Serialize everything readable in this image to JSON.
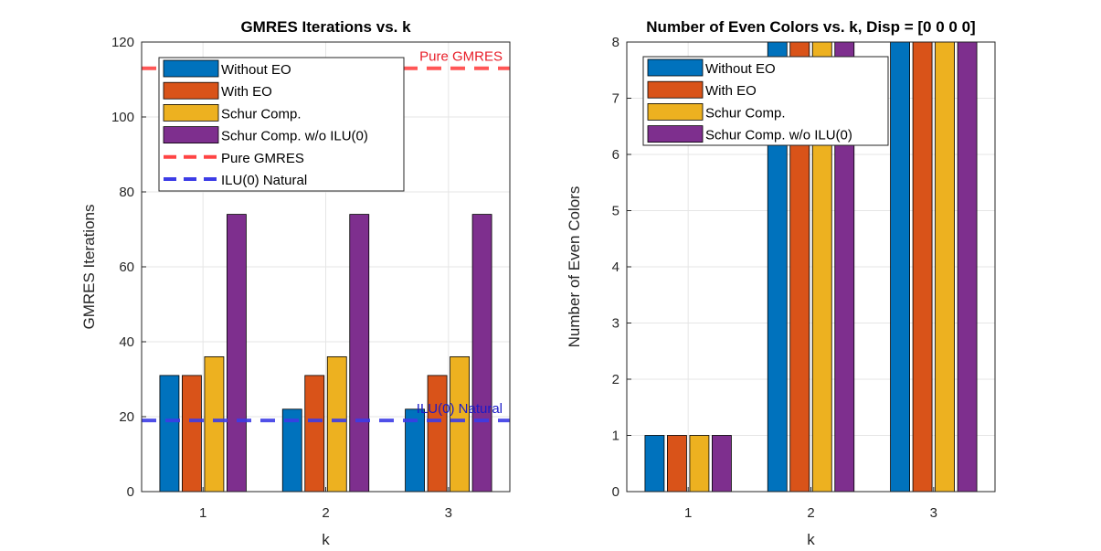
{
  "chart_data": [
    {
      "type": "bar",
      "title": "GMRES Iterations vs. k",
      "xlabel": "k",
      "ylabel": "GMRES Iterations",
      "categories": [
        "1",
        "2",
        "3"
      ],
      "ylim": [
        0,
        120
      ],
      "yticks": [
        0,
        20,
        40,
        60,
        80,
        100,
        120
      ],
      "grid": true,
      "legend_position": "top-left",
      "series": [
        {
          "name": "Without EO",
          "color": "#0072BD",
          "values": [
            31,
            22,
            22
          ]
        },
        {
          "name": "With EO",
          "color": "#D95319",
          "values": [
            31,
            31,
            31
          ]
        },
        {
          "name": "Schur Comp.",
          "color": "#EDB120",
          "values": [
            36,
            36,
            36
          ]
        },
        {
          "name": "Schur Comp. w/o ILU(0)",
          "color": "#7E2F8E",
          "values": [
            74,
            74,
            74
          ]
        }
      ],
      "reference_lines": [
        {
          "name": "Pure GMRES",
          "value": 113,
          "color": "#FF4444",
          "label_color": "#E8202A",
          "style": "dashed"
        },
        {
          "name": "ILU(0) Natural",
          "value": 19,
          "color": "#3C3CE6",
          "label_color": "#1A1AC8",
          "style": "dashed"
        }
      ]
    },
    {
      "type": "bar",
      "title": "Number of Even Colors vs. k,  Disp = [0 0 0 0]",
      "xlabel": "k",
      "ylabel": "Number of Even Colors",
      "categories": [
        "1",
        "2",
        "3"
      ],
      "ylim": [
        0,
        8
      ],
      "yticks": [
        0,
        1,
        2,
        3,
        4,
        5,
        6,
        7,
        8
      ],
      "grid": true,
      "legend_position": "top-left",
      "series": [
        {
          "name": "Without EO",
          "color": "#0072BD",
          "values": [
            1,
            8,
            8
          ]
        },
        {
          "name": "With EO",
          "color": "#D95319",
          "values": [
            1,
            8,
            8
          ]
        },
        {
          "name": "Schur Comp.",
          "color": "#EDB120",
          "values": [
            1,
            8,
            8
          ]
        },
        {
          "name": "Schur Comp. w/o ILU(0)",
          "color": "#7E2F8E",
          "values": [
            1,
            8,
            8
          ]
        }
      ]
    }
  ]
}
